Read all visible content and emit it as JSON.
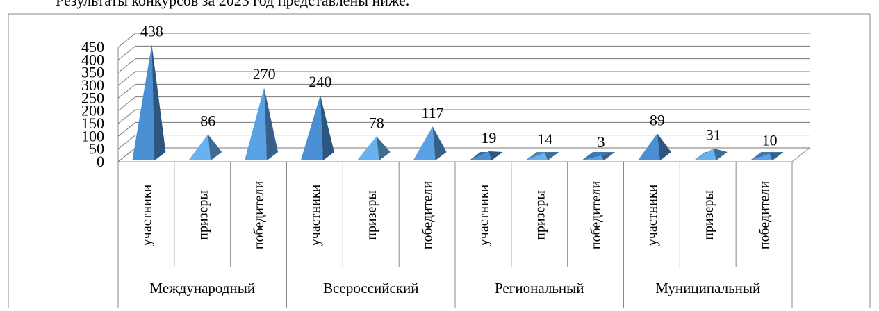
{
  "caption": "Результаты конкурсов за 2023 год представлены ниже.",
  "chart_data": {
    "type": "pyramid",
    "categories": [
      "участники",
      "призеры",
      "победители",
      "участники",
      "призеры",
      "победители",
      "участники",
      "призеры",
      "победители",
      "участники",
      "призеры",
      "победители"
    ],
    "groups": [
      "Международный",
      "Всероссийский",
      "Региональный",
      "Муниципальный"
    ],
    "values": [
      438,
      86,
      270,
      240,
      78,
      117,
      19,
      14,
      3,
      89,
      31,
      10
    ],
    "colors": [
      "#4a8ed4",
      "#68b2f0",
      "#5aa0e4",
      "#4a8ed4",
      "#68b2f0",
      "#5aa0e4",
      "#4a8ed4",
      "#68b2f0",
      "#5aa0e4",
      "#4a8ed4",
      "#68b2f0",
      "#5aa0e4"
    ],
    "ylim": [
      0,
      450
    ],
    "yticks": [
      0,
      50,
      100,
      150,
      200,
      250,
      300,
      350,
      400,
      450
    ],
    "grid": true
  }
}
